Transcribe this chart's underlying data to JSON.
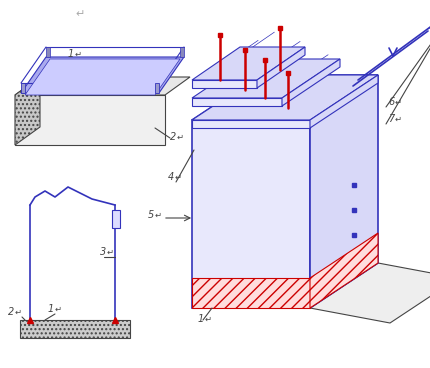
{
  "bg_color": "#ffffff",
  "blue": "#3333bb",
  "blue_fill": "#d8d8f8",
  "blue_fill2": "#e8e8fc",
  "red": "#cc0000",
  "dark": "#444444",
  "gray_fill": "#e0e0e0",
  "gray_dark": "#999999",
  "fig_width": 4.3,
  "fig_height": 3.68,
  "dpi": 100
}
